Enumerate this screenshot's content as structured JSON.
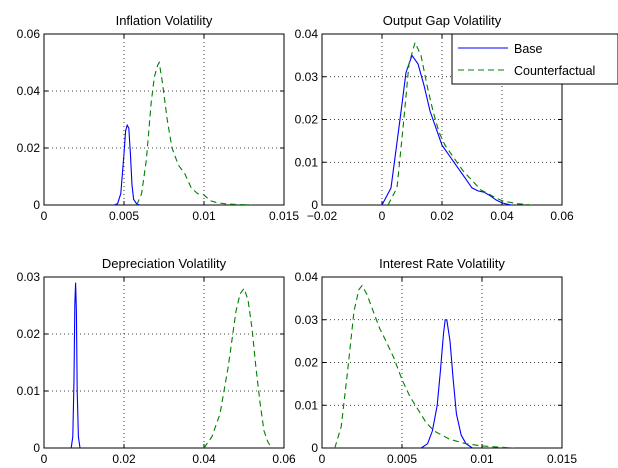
{
  "colors": {
    "base": "#0000ff",
    "counterfactual": "#008000"
  },
  "legend": {
    "placement": "top-right",
    "entries": [
      "Base",
      "Counterfactual"
    ]
  },
  "chart_data": [
    {
      "type": "line",
      "title": "Inflation Volatility",
      "xlim": [
        0,
        0.015
      ],
      "ylim": [
        0,
        0.06
      ],
      "xticks": [
        0,
        0.005,
        0.01,
        0.015
      ],
      "yticks": [
        0,
        0.02,
        0.04,
        0.06
      ],
      "xtick_labels": [
        "0",
        "0.005",
        "0.01",
        "0.015"
      ],
      "ytick_labels": [
        "0",
        "0.02",
        "0.04",
        "0.06"
      ],
      "grid": true,
      "series": [
        {
          "name": "Base",
          "style": "solid",
          "color": "#0000ff",
          "x": [
            0.0044,
            0.0046,
            0.0048,
            0.005,
            0.0051,
            0.0052,
            0.0053,
            0.0054,
            0.0055,
            0.0056,
            0.0058,
            0.006
          ],
          "y": [
            0,
            0.0005,
            0.004,
            0.018,
            0.026,
            0.028,
            0.027,
            0.018,
            0.007,
            0.002,
            0.0003,
            0
          ]
        },
        {
          "name": "Counterfactual",
          "style": "dashed",
          "color": "#008000",
          "x": [
            0.0058,
            0.0061,
            0.0064,
            0.0067,
            0.0069,
            0.0071,
            0.0072,
            0.0074,
            0.0077,
            0.008,
            0.0084,
            0.0088,
            0.0092,
            0.0096,
            0.01,
            0.0104,
            0.0108,
            0.0115,
            0.0125,
            0.013
          ],
          "y": [
            0,
            0.004,
            0.016,
            0.036,
            0.045,
            0.049,
            0.05,
            0.043,
            0.03,
            0.02,
            0.014,
            0.011,
            0.006,
            0.004,
            0.0035,
            0.0015,
            0.0008,
            0.0003,
            0.0001,
            0
          ]
        }
      ]
    },
    {
      "type": "line",
      "title": "Output Gap Volatility",
      "xlim": [
        -0.02,
        0.06
      ],
      "ylim": [
        0,
        0.04
      ],
      "xticks": [
        -0.02,
        0,
        0.02,
        0.04,
        0.06
      ],
      "yticks": [
        0,
        0.01,
        0.02,
        0.03,
        0.04
      ],
      "xtick_labels": [
        "−0.02",
        "0",
        "0.02",
        "0.04",
        "0.06"
      ],
      "ytick_labels": [
        "0",
        "0.01",
        "0.02",
        "0.03",
        "0.04"
      ],
      "grid": true,
      "series": [
        {
          "name": "Base",
          "style": "solid",
          "color": "#0000ff",
          "x": [
            0.0,
            0.003,
            0.006,
            0.008,
            0.01,
            0.012,
            0.014,
            0.016,
            0.018,
            0.02,
            0.022,
            0.024,
            0.026,
            0.028,
            0.03,
            0.032,
            0.034,
            0.036,
            0.038,
            0.04,
            0.043
          ],
          "y": [
            0,
            0.004,
            0.02,
            0.031,
            0.035,
            0.033,
            0.028,
            0.022,
            0.018,
            0.014,
            0.012,
            0.01,
            0.008,
            0.006,
            0.004,
            0.0033,
            0.003,
            0.0022,
            0.0012,
            0.0005,
            0
          ]
        },
        {
          "name": "Counterfactual",
          "style": "dashed",
          "color": "#008000",
          "x": [
            0.002,
            0.005,
            0.007,
            0.009,
            0.011,
            0.013,
            0.015,
            0.017,
            0.019,
            0.021,
            0.023,
            0.025,
            0.027,
            0.029,
            0.031,
            0.033,
            0.035,
            0.037,
            0.04,
            0.045,
            0.05
          ],
          "y": [
            0,
            0.004,
            0.018,
            0.033,
            0.038,
            0.035,
            0.028,
            0.022,
            0.017,
            0.014,
            0.012,
            0.01,
            0.008,
            0.0065,
            0.005,
            0.0035,
            0.0028,
            0.002,
            0.001,
            0.0003,
            0
          ]
        }
      ]
    },
    {
      "type": "line",
      "title": "Depreciation Volatility",
      "xlim": [
        0,
        0.06
      ],
      "ylim": [
        0,
        0.03
      ],
      "xticks": [
        0,
        0.02,
        0.04,
        0.06
      ],
      "yticks": [
        0,
        0.01,
        0.02,
        0.03
      ],
      "xtick_labels": [
        "0",
        "0.02",
        "0.04",
        "0.06"
      ],
      "ytick_labels": [
        "0",
        "0.01",
        "0.02",
        "0.03"
      ],
      "grid": true,
      "series": [
        {
          "name": "Base",
          "style": "solid",
          "color": "#0000ff",
          "x": [
            0.0068,
            0.0072,
            0.0075,
            0.0077,
            0.0079,
            0.0081,
            0.0083,
            0.0086,
            0.009
          ],
          "y": [
            0,
            0.002,
            0.012,
            0.025,
            0.029,
            0.024,
            0.01,
            0.002,
            0
          ]
        },
        {
          "name": "Counterfactual",
          "style": "dashed",
          "color": "#008000",
          "x": [
            0.04,
            0.042,
            0.044,
            0.046,
            0.047,
            0.048,
            0.049,
            0.05,
            0.051,
            0.052,
            0.053,
            0.054,
            0.055,
            0.056,
            0.057
          ],
          "y": [
            0,
            0.002,
            0.006,
            0.014,
            0.019,
            0.024,
            0.027,
            0.028,
            0.026,
            0.021,
            0.014,
            0.008,
            0.003,
            0.001,
            0
          ]
        }
      ]
    },
    {
      "type": "line",
      "title": "Interest Rate Volatility",
      "xlim": [
        0,
        0.015
      ],
      "ylim": [
        0,
        0.04
      ],
      "xticks": [
        0,
        0.005,
        0.01,
        0.015
      ],
      "yticks": [
        0,
        0.01,
        0.02,
        0.03,
        0.04
      ],
      "xtick_labels": [
        "0",
        "0.005",
        "0.01",
        "0.015"
      ],
      "ytick_labels": [
        "0",
        "0.01",
        "0.02",
        "0.03",
        "0.04"
      ],
      "grid": true,
      "series": [
        {
          "name": "Base",
          "style": "solid",
          "color": "#0000ff",
          "x": [
            0.0062,
            0.0066,
            0.0069,
            0.0072,
            0.0074,
            0.0076,
            0.0077,
            0.0078,
            0.008,
            0.0082,
            0.0084,
            0.0087,
            0.009,
            0.0094
          ],
          "y": [
            0,
            0.001,
            0.004,
            0.01,
            0.018,
            0.027,
            0.03,
            0.03,
            0.025,
            0.016,
            0.008,
            0.003,
            0.001,
            0
          ]
        },
        {
          "name": "Counterfactual",
          "style": "dashed",
          "color": "#008000",
          "x": [
            0.0008,
            0.0012,
            0.0016,
            0.002,
            0.0023,
            0.0025,
            0.0028,
            0.0032,
            0.0036,
            0.004,
            0.0045,
            0.005,
            0.0055,
            0.006,
            0.0065,
            0.007,
            0.0075,
            0.008,
            0.009,
            0.01,
            0.011,
            0.012
          ],
          "y": [
            0,
            0.005,
            0.018,
            0.032,
            0.037,
            0.038,
            0.036,
            0.032,
            0.028,
            0.025,
            0.021,
            0.016,
            0.012,
            0.009,
            0.006,
            0.004,
            0.003,
            0.002,
            0.001,
            0.0005,
            0.0002,
            0
          ]
        }
      ]
    }
  ]
}
